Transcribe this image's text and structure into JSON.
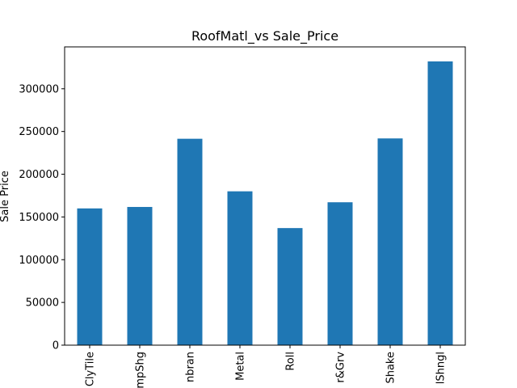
{
  "chart_data": {
    "type": "bar",
    "title": "RoofMatl_vs Sale_Price",
    "xlabel": "",
    "ylabel": "Sale Price",
    "categories": [
      "ClyTile",
      "CompShg",
      "Membran",
      "Metal",
      "Roll",
      "Tar&Grv",
      "WdShake",
      "WdShngl"
    ],
    "tick_labels_shown": [
      "ClyTile",
      "mpShg",
      "nbran",
      "Metal",
      "Roll",
      "r&Grv",
      "Shake",
      "lShngl"
    ],
    "values": [
      160000,
      161700,
      241500,
      180000,
      137000,
      167200,
      241900,
      332000
    ],
    "ylim": [
      0,
      349000
    ],
    "yticks": [
      0,
      50000,
      100000,
      150000,
      200000,
      250000,
      300000
    ],
    "bar_color": "#1f77b4",
    "grid": false,
    "legend": "none"
  }
}
